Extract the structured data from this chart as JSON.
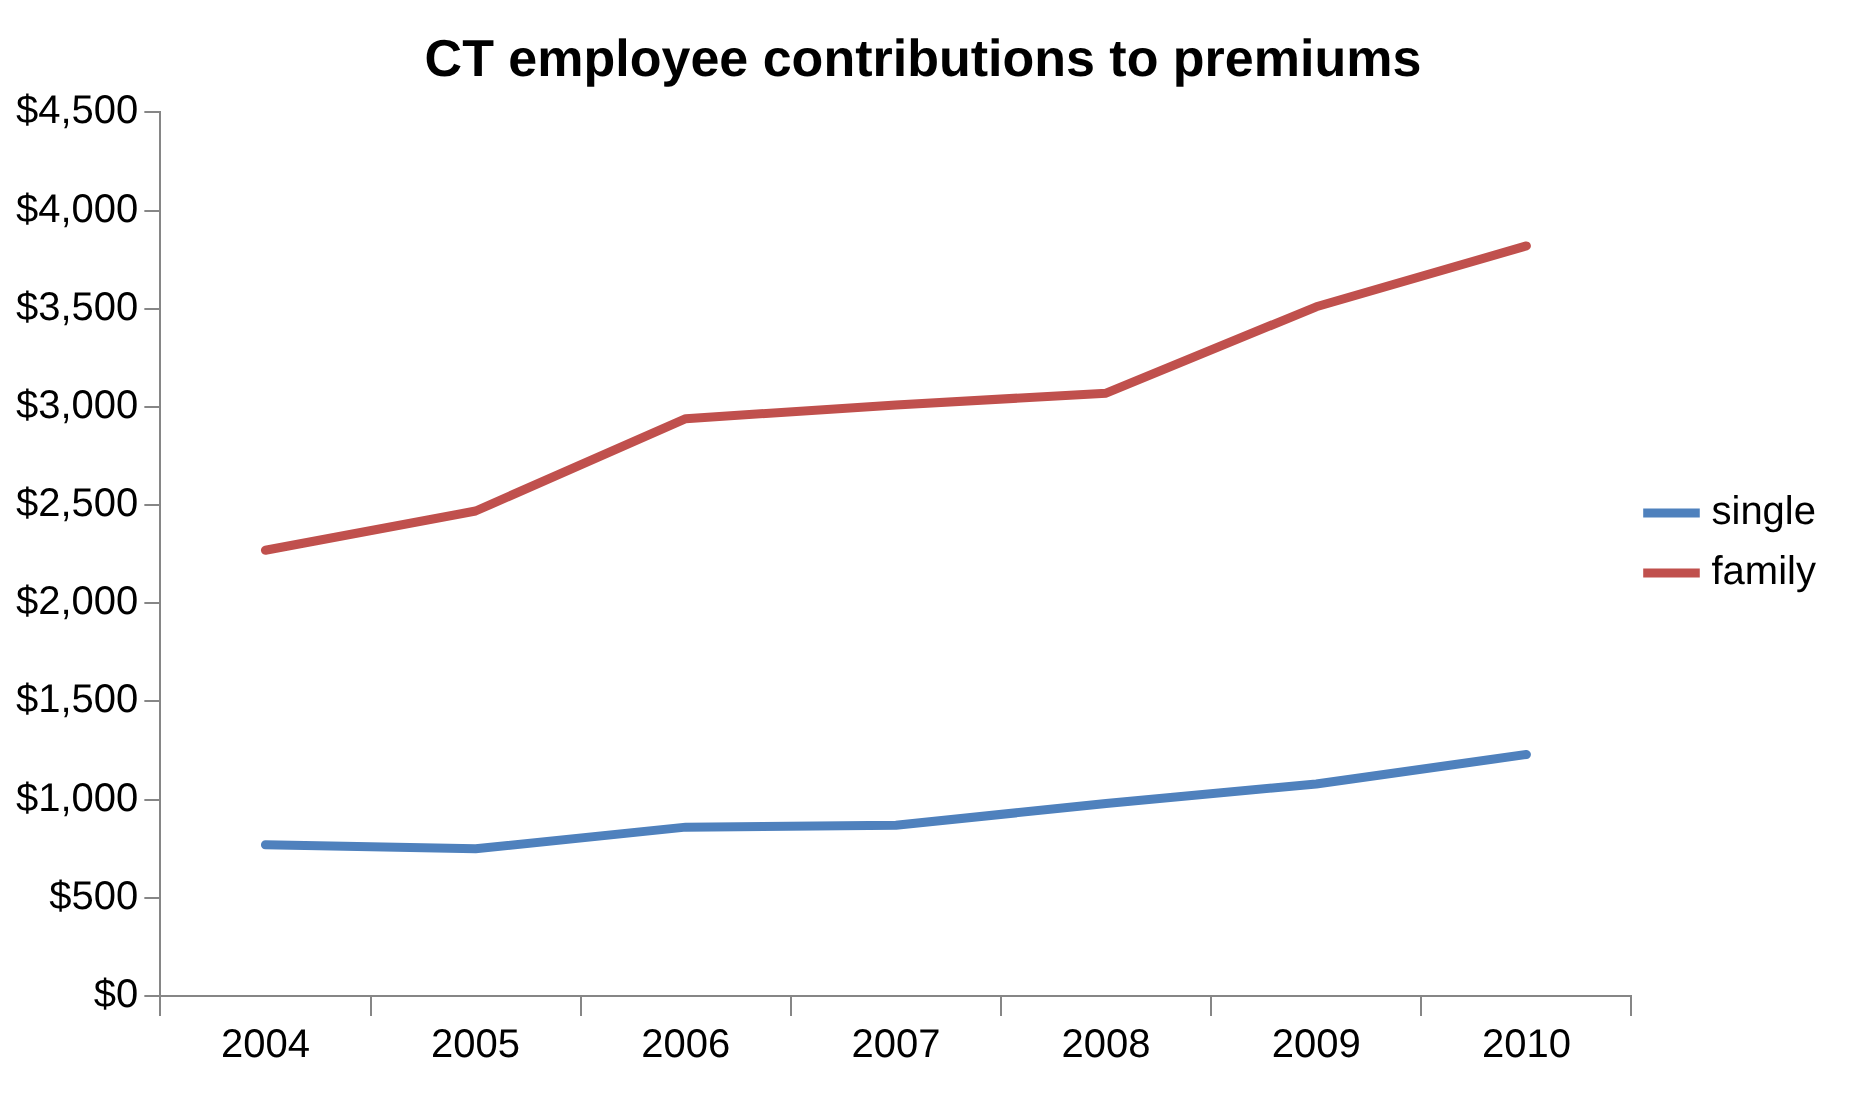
{
  "chart_data": {
    "type": "line",
    "title": "CT employee contributions to premiums",
    "categories": [
      "2004",
      "2005",
      "2006",
      "2007",
      "2008",
      "2009",
      "2010"
    ],
    "series": [
      {
        "name": "single",
        "color": "#4f81bd",
        "values": [
          770,
          750,
          860,
          870,
          980,
          1080,
          1230
        ]
      },
      {
        "name": "family",
        "color": "#c0504d",
        "values": [
          2270,
          2470,
          2940,
          3010,
          3070,
          3510,
          3820
        ]
      }
    ],
    "ylim": [
      0,
      4500
    ],
    "yticks": [
      {
        "value": 0,
        "label": "$0"
      },
      {
        "value": 500,
        "label": "$500"
      },
      {
        "value": 1000,
        "label": "$1,000"
      },
      {
        "value": 1500,
        "label": "$1,500"
      },
      {
        "value": 2000,
        "label": "$2,000"
      },
      {
        "value": 2500,
        "label": "$2,500"
      },
      {
        "value": 3000,
        "label": "$3,000"
      },
      {
        "value": 3500,
        "label": "$3,500"
      },
      {
        "value": 4000,
        "label": "$4,000"
      },
      {
        "value": 4500,
        "label": "$4,500"
      }
    ],
    "grid": false,
    "legend": "right",
    "marker": "none",
    "line_style": "solid"
  }
}
